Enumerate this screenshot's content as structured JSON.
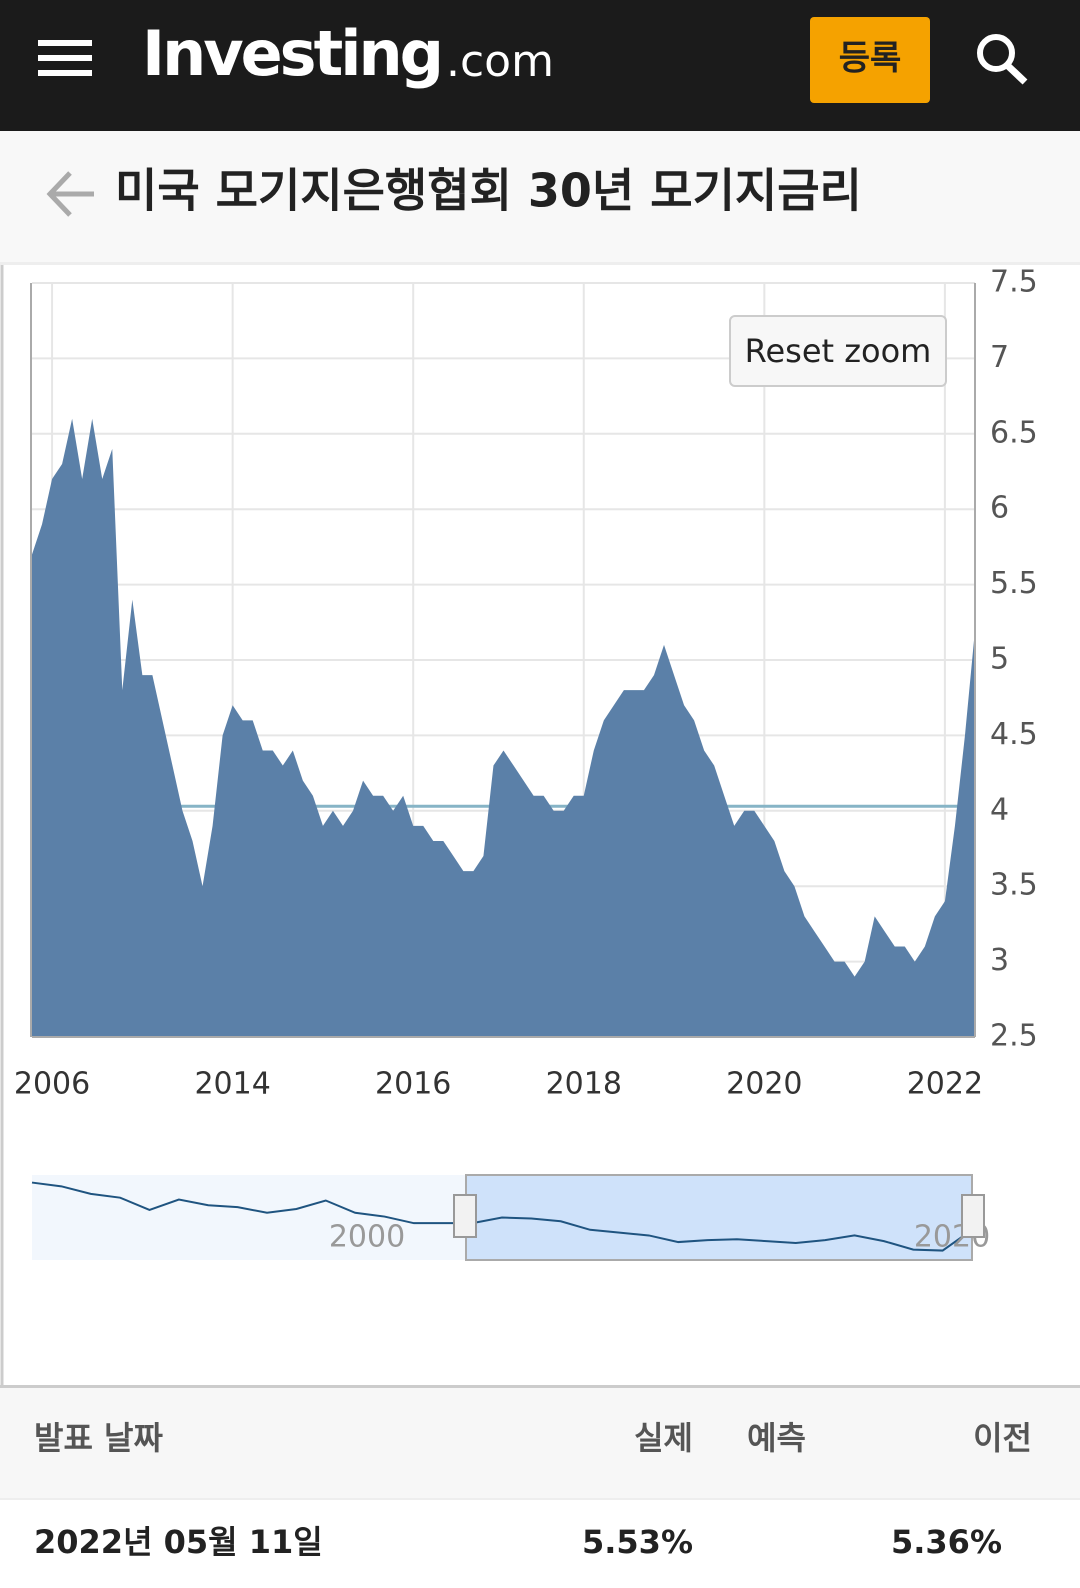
{
  "header": {
    "logo": "Investing",
    "logo_suffix": ".com",
    "register": "등록"
  },
  "title": "미국 모기지은행협회 30년 모기지금리",
  "reset_zoom": "Reset zoom",
  "chart_data": {
    "type": "area",
    "color": "#5b80a8",
    "grid": true,
    "ylim": [
      2.5,
      7.5
    ],
    "yticks": [
      2.5,
      3,
      3.5,
      4,
      4.5,
      5,
      5.5,
      6,
      6.5,
      7,
      7.5
    ],
    "reference_line": 4.03,
    "categories": [
      null,
      null,
      "2006",
      null,
      null,
      null,
      null,
      null,
      null,
      null,
      null,
      null,
      null,
      null,
      null,
      null,
      null,
      null,
      null,
      null,
      "2014",
      null,
      null,
      null,
      null,
      null,
      null,
      null,
      null,
      null,
      null,
      null,
      null,
      null,
      null,
      null,
      null,
      null,
      "2016",
      null,
      null,
      null,
      null,
      null,
      null,
      null,
      null,
      null,
      null,
      null,
      null,
      null,
      null,
      null,
      null,
      "2018",
      null,
      null,
      null,
      null,
      null,
      null,
      null,
      null,
      null,
      null,
      null,
      null,
      null,
      null,
      null,
      null,
      null,
      "2020",
      null,
      null,
      null,
      null,
      null,
      null,
      null,
      null,
      null,
      null,
      null,
      null,
      null,
      null,
      null,
      null,
      null,
      "2022",
      null,
      null,
      null
    ],
    "values": [
      5.7,
      5.9,
      6.2,
      6.3,
      6.6,
      6.2,
      6.6,
      6.2,
      6.4,
      4.8,
      5.4,
      4.9,
      4.9,
      4.6,
      4.3,
      4.0,
      3.8,
      3.5,
      3.9,
      4.5,
      4.7,
      4.6,
      4.6,
      4.4,
      4.4,
      4.3,
      4.4,
      4.2,
      4.1,
      3.9,
      4.0,
      3.9,
      4.0,
      4.2,
      4.1,
      4.1,
      4.0,
      4.1,
      3.9,
      3.9,
      3.8,
      3.8,
      3.7,
      3.6,
      3.6,
      3.7,
      4.3,
      4.4,
      4.3,
      4.2,
      4.1,
      4.1,
      4.0,
      4.0,
      4.1,
      4.1,
      4.4,
      4.6,
      4.7,
      4.8,
      4.8,
      4.8,
      4.9,
      5.1,
      4.9,
      4.7,
      4.6,
      4.4,
      4.3,
      4.1,
      3.9,
      4.0,
      4.0,
      3.9,
      3.8,
      3.6,
      3.5,
      3.3,
      3.2,
      3.1,
      3.0,
      3.0,
      2.9,
      3.0,
      3.3,
      3.2,
      3.1,
      3.1,
      3.0,
      3.1,
      3.3,
      3.4,
      3.9,
      4.5,
      5.2
    ],
    "navigator": {
      "labels": [
        "2000",
        "2020"
      ],
      "ylim": [
        2,
        11
      ],
      "values": [
        10.2,
        9.8,
        9.0,
        8.6,
        7.3,
        8.4,
        7.8,
        7.6,
        7.0,
        7.4,
        8.3,
        7.0,
        6.6,
        5.9,
        5.9,
        5.9,
        6.5,
        6.4,
        6.1,
        5.2,
        4.9,
        4.6,
        3.9,
        4.1,
        4.2,
        4.0,
        3.8,
        4.1,
        4.6,
        4.0,
        3.1,
        3.0,
        5.2
      ]
    }
  },
  "table": {
    "headers": [
      "발표 날짜",
      "실제",
      "예측",
      "이전"
    ],
    "rows": [
      {
        "date": "2022년 05월 11일",
        "actual": "5.53%",
        "previous": "5.36%"
      }
    ]
  }
}
